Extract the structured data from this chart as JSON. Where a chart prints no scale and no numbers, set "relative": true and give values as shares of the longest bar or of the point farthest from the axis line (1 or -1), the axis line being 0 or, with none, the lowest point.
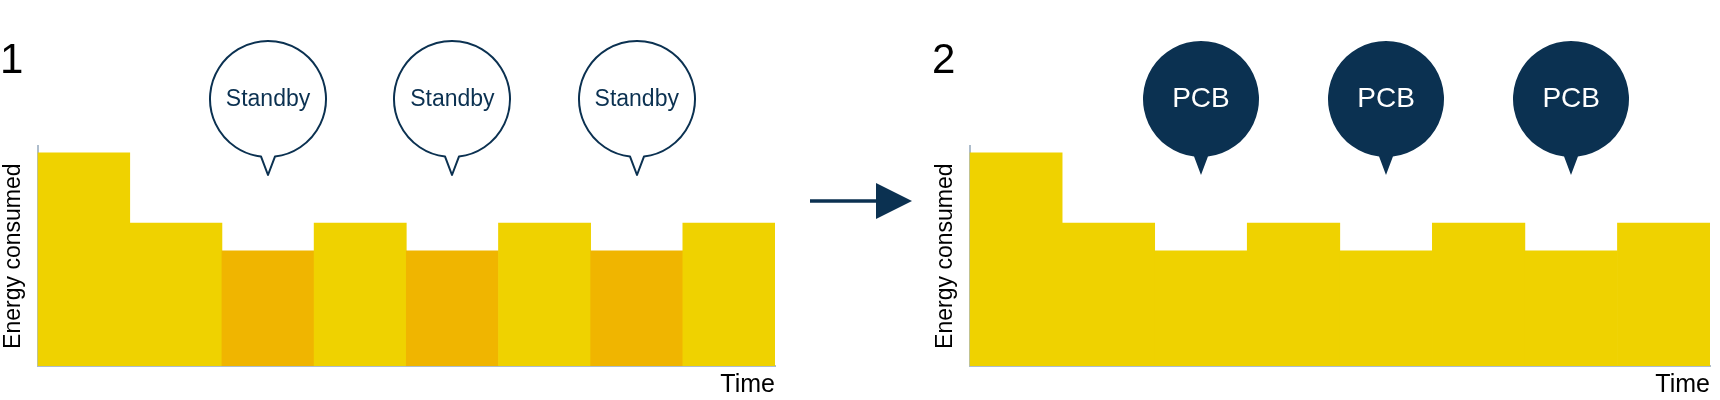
{
  "chart_data": [
    {
      "type": "bar",
      "title": "1",
      "xlabel": "Time",
      "ylabel": "Energy consumed",
      "categories": [
        null,
        null,
        null,
        null,
        null,
        null,
        null,
        null
      ],
      "values": [
        1,
        0.67,
        0.54,
        0.67,
        0.54,
        0.67,
        0.54,
        0.67
      ],
      "colors": [
        "#efd200",
        "#efd200",
        "#f0b500",
        "#efd200",
        "#f0b500",
        "#efd200",
        "#f0b500",
        "#efd200"
      ],
      "relative": true,
      "tick_labels": false,
      "annotations": [
        "Standby",
        "Standby",
        "Standby"
      ]
    },
    {
      "type": "bar",
      "title": "2",
      "xlabel": "Time",
      "ylabel": "Energy consumed",
      "categories": [
        null,
        null,
        null,
        null,
        null,
        null,
        null,
        null
      ],
      "values": [
        1,
        0.67,
        0.54,
        0.67,
        0.54,
        0.67,
        0.54,
        0.67
      ],
      "color": "#efd200",
      "relative": true,
      "tick_labels": false,
      "annotations": [
        "PCB",
        "PCB",
        "PCB"
      ]
    }
  ]
}
